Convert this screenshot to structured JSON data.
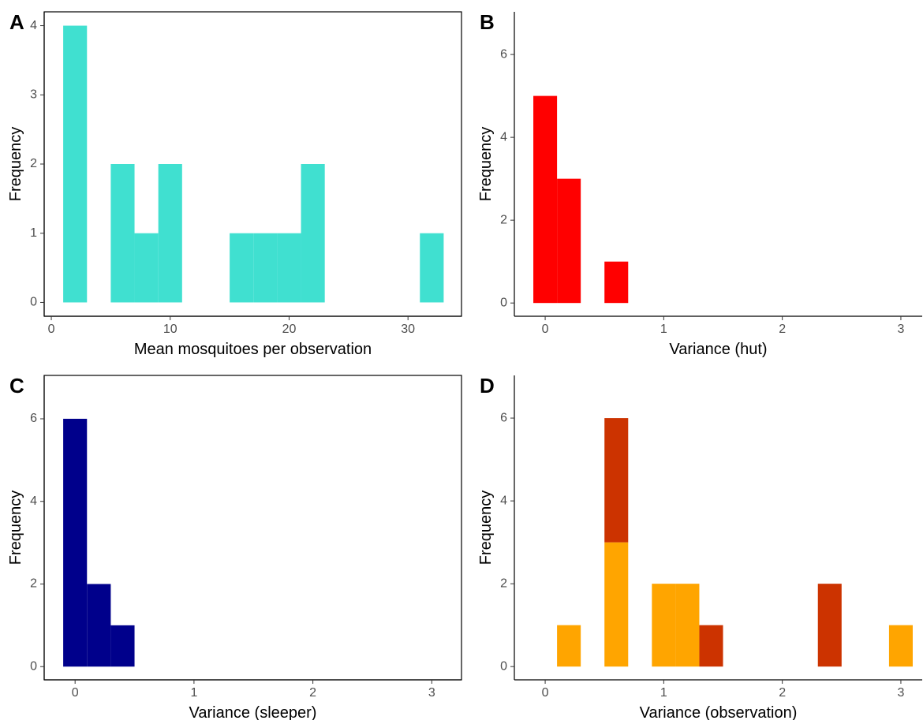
{
  "chart_data": [
    {
      "type": "histogram",
      "panel_label": "A",
      "xlabel": "Mean mosquitoes per observation",
      "ylabel": "Frequency",
      "bins": [
        1,
        3,
        5,
        7,
        9,
        11,
        13,
        15,
        17,
        19,
        21,
        23,
        25,
        27,
        29,
        31,
        33
      ],
      "values": [
        4,
        0,
        2,
        1,
        2,
        0,
        0,
        1,
        1,
        1,
        2,
        0,
        0,
        0,
        0,
        1
      ],
      "color": "#40e0d0",
      "xlim": [
        -0.6,
        34.5
      ],
      "ylim": [
        -0.2,
        4.2
      ],
      "xticks": [
        0,
        10,
        20,
        30
      ],
      "yticks": [
        0,
        1,
        2,
        3,
        4
      ],
      "frame": true
    },
    {
      "type": "histogram",
      "panel_label": "B",
      "xlabel": "Variance (hut)",
      "ylabel": "Frequency",
      "bins": [
        -0.1,
        0.1,
        0.3,
        0.5,
        0.7
      ],
      "values": [
        5,
        3,
        0,
        1
      ],
      "color": "#ff0000",
      "xlim": [
        -0.26,
        3.18
      ],
      "ylim": [
        -0.32,
        7.03
      ],
      "xticks": [
        0,
        1,
        2,
        3
      ],
      "yticks": [
        0,
        2,
        4,
        6
      ],
      "frame": false
    },
    {
      "type": "histogram",
      "panel_label": "C",
      "xlabel": "Variance (sleeper)",
      "ylabel": "Frequency",
      "bins": [
        -0.1,
        0.1,
        0.3,
        0.5
      ],
      "values": [
        6,
        2,
        1
      ],
      "color": "#00008b",
      "xlim": [
        -0.26,
        3.25
      ],
      "ylim": [
        -0.32,
        7.05
      ],
      "xticks": [
        0,
        1,
        2,
        3
      ],
      "yticks": [
        0,
        2,
        4,
        6
      ],
      "frame": true
    },
    {
      "type": "stacked_histogram",
      "panel_label": "D",
      "xlabel": "Variance (observation)",
      "ylabel": "Frequency",
      "bins": [
        0.1,
        0.3,
        0.5,
        0.7,
        0.9,
        1.1,
        1.3,
        1.5,
        1.7,
        1.9,
        2.1,
        2.3,
        2.5,
        2.7,
        2.9,
        3.1
      ],
      "series": [
        {
          "color": "#ffa500",
          "values": [
            1,
            0,
            3,
            0,
            2,
            2,
            0,
            0,
            0,
            0,
            0,
            0,
            0,
            0,
            1
          ]
        },
        {
          "color": "#cc3300",
          "values": [
            0,
            0,
            3,
            0,
            0,
            0,
            1,
            0,
            0,
            0,
            0,
            2,
            0,
            0,
            0
          ]
        }
      ],
      "xlim": [
        -0.26,
        3.18
      ],
      "ylim": [
        -0.32,
        7.03
      ],
      "xticks": [
        0,
        1,
        2,
        3
      ],
      "yticks": [
        0,
        2,
        4,
        6
      ],
      "frame": false
    }
  ]
}
